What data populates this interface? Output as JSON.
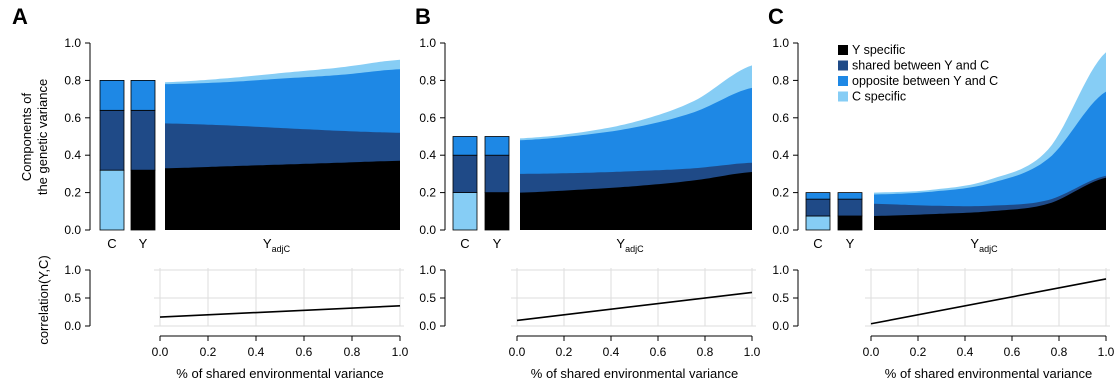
{
  "colors": {
    "y_specific": "#000000",
    "shared": "#1f4a87",
    "opposite": "#1e88e5",
    "c_specific": "#86cdf5",
    "grid": "#dddddd",
    "axis": "#888888"
  },
  "labels": {
    "ylabel_top_line1": "Components of",
    "ylabel_top_line2": "the genetic variance",
    "ylabel_bottom": "correlation(Y,C)",
    "xlabel_bottom": "% of shared environmental variance",
    "cat_C": "C",
    "cat_Y": "Y",
    "cat_Yadj_main": "Y",
    "cat_Yadj_sub": "adjC"
  },
  "legend": [
    {
      "label": "Y specific",
      "color_key": "y_specific"
    },
    {
      "label": "shared between Y and C",
      "color_key": "shared"
    },
    {
      "label": "opposite between Y and C",
      "color_key": "opposite"
    },
    {
      "label": "C specific",
      "color_key": "c_specific"
    }
  ],
  "chart_data": [
    {
      "panel": "A",
      "type": "area",
      "ylim": [
        0,
        1.0
      ],
      "yticks": [
        "0.0",
        "0.2",
        "0.4",
        "0.6",
        "0.8",
        "1.0"
      ],
      "bars": {
        "C": {
          "c_specific": 0.32,
          "shared": 0.32,
          "opposite": 0.16,
          "y_specific": 0.0
        },
        "Y": {
          "y_specific": 0.32,
          "shared": 0.32,
          "opposite": 0.16,
          "c_specific": 0.0
        }
      },
      "yadjc": {
        "x": [
          0.0,
          0.25,
          0.5,
          0.75,
          1.0
        ],
        "y_specific_top": [
          0.33,
          0.34,
          0.35,
          0.36,
          0.37
        ],
        "shared_top": [
          0.57,
          0.56,
          0.545,
          0.53,
          0.52
        ],
        "opposite_top": [
          0.78,
          0.79,
          0.81,
          0.83,
          0.86
        ],
        "c_specific_top": [
          0.79,
          0.81,
          0.84,
          0.87,
          0.91
        ]
      },
      "correlation": {
        "x": [
          0.0,
          1.0
        ],
        "y": [
          0.16,
          0.36
        ],
        "ylim": [
          0,
          1.0
        ],
        "yticks": [
          "0.0",
          "0.5",
          "1.0"
        ],
        "xticks": [
          "0.0",
          "0.2",
          "0.4",
          "0.6",
          "0.8",
          "1.0"
        ]
      }
    },
    {
      "panel": "B",
      "type": "area",
      "ylim": [
        0,
        1.0
      ],
      "yticks": [
        "0.0",
        "0.2",
        "0.4",
        "0.6",
        "0.8",
        "1.0"
      ],
      "bars": {
        "C": {
          "c_specific": 0.2,
          "shared": 0.2,
          "opposite": 0.1,
          "y_specific": 0.0
        },
        "Y": {
          "y_specific": 0.2,
          "shared": 0.2,
          "opposite": 0.1,
          "c_specific": 0.0
        }
      },
      "yadjc": {
        "x": [
          0.0,
          0.25,
          0.5,
          0.75,
          1.0
        ],
        "y_specific_top": [
          0.2,
          0.215,
          0.235,
          0.265,
          0.31
        ],
        "shared_top": [
          0.3,
          0.305,
          0.315,
          0.33,
          0.36
        ],
        "opposite_top": [
          0.48,
          0.505,
          0.55,
          0.63,
          0.76
        ],
        "c_specific_top": [
          0.49,
          0.52,
          0.58,
          0.69,
          0.88
        ]
      },
      "correlation": {
        "x": [
          0.0,
          1.0
        ],
        "y": [
          0.1,
          0.6
        ],
        "ylim": [
          0,
          1.0
        ],
        "yticks": [
          "0.0",
          "0.5",
          "1.0"
        ],
        "xticks": [
          "0.0",
          "0.2",
          "0.4",
          "0.6",
          "0.8",
          "1.0"
        ]
      }
    },
    {
      "panel": "C",
      "type": "area",
      "ylim": [
        0,
        1.0
      ],
      "yticks": [
        "0.0",
        "0.2",
        "0.4",
        "0.6",
        "0.8",
        "1.0"
      ],
      "bars": {
        "C": {
          "c_specific": 0.075,
          "shared": 0.09,
          "opposite": 0.035,
          "y_specific": 0.0
        },
        "Y": {
          "y_specific": 0.075,
          "shared": 0.09,
          "opposite": 0.035,
          "c_specific": 0.0
        }
      },
      "yadjc": {
        "x": [
          0.0,
          0.25,
          0.5,
          0.75,
          1.0
        ],
        "y_specific_top": [
          0.075,
          0.085,
          0.1,
          0.14,
          0.28
        ],
        "shared_top": [
          0.14,
          0.13,
          0.13,
          0.16,
          0.29
        ],
        "opposite_top": [
          0.19,
          0.205,
          0.25,
          0.38,
          0.74
        ],
        "c_specific_top": [
          0.2,
          0.215,
          0.27,
          0.43,
          0.95
        ]
      },
      "correlation": {
        "x": [
          0.0,
          1.0
        ],
        "y": [
          0.04,
          0.84
        ],
        "ylim": [
          0,
          1.0
        ],
        "yticks": [
          "0.0",
          "0.5",
          "1.0"
        ],
        "xticks": [
          "0.0",
          "0.2",
          "0.4",
          "0.6",
          "0.8",
          "1.0"
        ]
      }
    }
  ]
}
